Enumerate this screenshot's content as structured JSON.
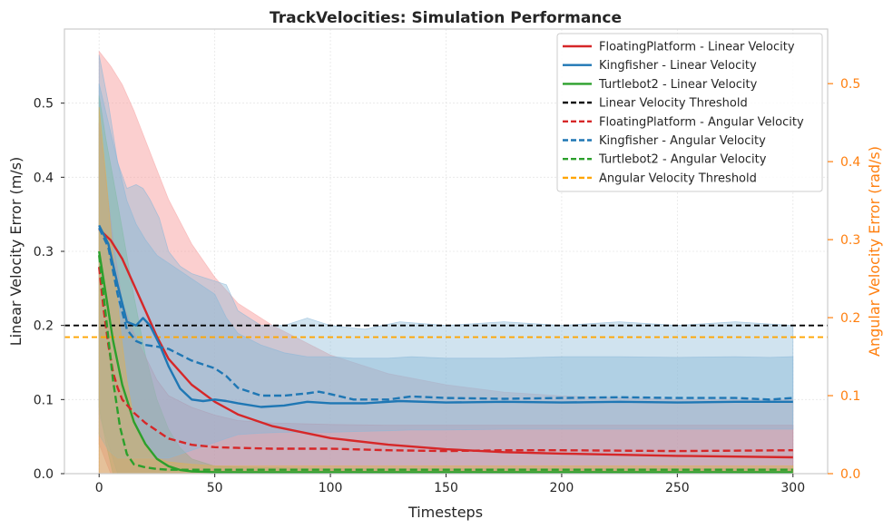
{
  "chart_data": {
    "type": "line",
    "title": "TrackVelocities: Simulation Performance",
    "xlabel": "Timesteps",
    "ylabel_left": "Linear Velocity Error (m/s)",
    "ylabel_right": "Angular Velocity Error (rad/s)",
    "xlim": [
      -15,
      315
    ],
    "ylim_left": [
      0,
      0.6
    ],
    "ylim_right": [
      0,
      0.57
    ],
    "x_ticks": [
      0,
      50,
      100,
      150,
      200,
      250,
      300
    ],
    "y_ticks_left": [
      0.0,
      0.1,
      0.2,
      0.3,
      0.4,
      0.5
    ],
    "y_ticks_right": [
      0.0,
      0.1,
      0.2,
      0.3,
      0.4,
      0.5
    ],
    "x_tick_labels": [
      "0",
      "50",
      "100",
      "150",
      "200",
      "250",
      "300"
    ],
    "y_tick_labels_left": [
      "0.0",
      "0.1",
      "0.2",
      "0.3",
      "0.4",
      "0.5"
    ],
    "y_tick_labels_right": [
      "0.0",
      "0.1",
      "0.2",
      "0.3",
      "0.4",
      "0.5"
    ],
    "legend_position": "top-right",
    "colors": {
      "floating": "#d62728",
      "kingfisher": "#1f77b4",
      "turtlebot": "#2ca02c",
      "threshold_linear": "#000000",
      "threshold_angular": "#ffa500",
      "right_axis": "#ff7f0e"
    },
    "thresholds": [
      {
        "name": "Linear Velocity Threshold",
        "axis": "left",
        "value": 0.2,
        "color": "#000000"
      },
      {
        "name": "Angular Velocity Threshold",
        "axis": "right",
        "value": 0.175,
        "color": "#ffa500"
      }
    ],
    "series": [
      {
        "name": "FloatingPlatform - Linear Velocity",
        "axis": "left",
        "style": "solid",
        "color": "#d62728",
        "x": [
          0,
          5,
          10,
          15,
          20,
          25,
          30,
          40,
          50,
          60,
          75,
          100,
          125,
          150,
          175,
          200,
          250,
          300
        ],
        "y": [
          0.33,
          0.315,
          0.29,
          0.255,
          0.22,
          0.185,
          0.155,
          0.12,
          0.097,
          0.08,
          0.064,
          0.048,
          0.039,
          0.033,
          0.029,
          0.027,
          0.024,
          0.022
        ],
        "lower": [
          0.04,
          0.0,
          0.0,
          0.0,
          0.0,
          0.0,
          0.0,
          0.0,
          0.0,
          0.0,
          0.0,
          0.0,
          0.0,
          0.0,
          0.0,
          0.0,
          0.0,
          0.0
        ],
        "upper": [
          0.57,
          0.55,
          0.525,
          0.49,
          0.45,
          0.41,
          0.37,
          0.31,
          0.265,
          0.23,
          0.2,
          0.16,
          0.135,
          0.12,
          0.11,
          0.105,
          0.1,
          0.1
        ],
        "band_color": "#f7a8a8",
        "band_opacity": 0.55
      },
      {
        "name": "Kingfisher - Linear Velocity",
        "axis": "left",
        "style": "solid",
        "color": "#1f77b4",
        "x": [
          0,
          4,
          8,
          12,
          16,
          19,
          22,
          26,
          30,
          35,
          40,
          45,
          50,
          55,
          60,
          70,
          80,
          90,
          100,
          115,
          130,
          150,
          175,
          200,
          225,
          250,
          275,
          300
        ],
        "y": [
          0.335,
          0.31,
          0.255,
          0.205,
          0.2,
          0.21,
          0.2,
          0.175,
          0.145,
          0.115,
          0.1,
          0.098,
          0.1,
          0.098,
          0.095,
          0.09,
          0.092,
          0.097,
          0.095,
          0.095,
          0.098,
          0.096,
          0.097,
          0.096,
          0.097,
          0.096,
          0.097,
          0.097
        ],
        "lower": [
          0.08,
          0.04,
          0.0,
          0.0,
          0.0,
          0.0,
          0.0,
          0.0,
          0.0,
          0.0,
          0.0,
          0.0,
          0.0,
          0.0,
          0.0,
          0.0,
          0.0,
          0.0,
          0.0,
          0.0,
          0.0,
          0.0,
          0.0,
          0.0,
          0.0,
          0.0,
          0.0,
          0.0
        ],
        "upper": [
          0.565,
          0.5,
          0.42,
          0.385,
          0.39,
          0.385,
          0.37,
          0.345,
          0.3,
          0.28,
          0.27,
          0.265,
          0.26,
          0.255,
          0.22,
          0.2,
          0.2,
          0.21,
          0.2,
          0.195,
          0.205,
          0.2,
          0.205,
          0.2,
          0.205,
          0.2,
          0.205,
          0.2
        ],
        "band_color": "#8ab8d8",
        "band_opacity": 0.4
      },
      {
        "name": "Turtlebot2 - Linear Velocity",
        "axis": "left",
        "style": "solid",
        "color": "#2ca02c",
        "x": [
          0,
          3,
          6,
          10,
          15,
          20,
          25,
          30,
          35,
          40,
          50,
          75,
          100,
          150,
          200,
          250,
          300
        ],
        "y": [
          0.3,
          0.24,
          0.18,
          0.12,
          0.07,
          0.04,
          0.02,
          0.01,
          0.005,
          0.003,
          0.002,
          0.002,
          0.002,
          0.002,
          0.002,
          0.002,
          0.002
        ],
        "lower": [
          0.09,
          0.04,
          0.0,
          0.0,
          0.0,
          0.0,
          0.0,
          0.0,
          0.0,
          0.0,
          0.0,
          0.0,
          0.0,
          0.0,
          0.0,
          0.0,
          0.0
        ],
        "upper": [
          0.51,
          0.45,
          0.4,
          0.33,
          0.24,
          0.16,
          0.1,
          0.06,
          0.035,
          0.02,
          0.01,
          0.008,
          0.007,
          0.007,
          0.007,
          0.007,
          0.007
        ],
        "band_color": "#7fbf7f",
        "band_opacity": 0.5
      },
      {
        "name": "FloatingPlatform - Angular Velocity",
        "axis": "right",
        "style": "dashed",
        "color": "#d62728",
        "x": [
          0,
          2,
          4,
          6,
          8,
          10,
          15,
          20,
          25,
          30,
          40,
          50,
          60,
          75,
          100,
          125,
          150,
          175,
          200,
          250,
          300
        ],
        "y": [
          0.265,
          0.21,
          0.165,
          0.13,
          0.11,
          0.095,
          0.078,
          0.065,
          0.055,
          0.045,
          0.037,
          0.034,
          0.033,
          0.032,
          0.032,
          0.03,
          0.029,
          0.03,
          0.03,
          0.029,
          0.03
        ],
        "lower": [
          0.0,
          0.0,
          0.0,
          0.0,
          0.0,
          0.0,
          0.0,
          0.0,
          0.0,
          0.0,
          0.0,
          0.0,
          0.0,
          0.0,
          0.0,
          0.0,
          0.0,
          0.0,
          0.0,
          0.0,
          0.0
        ],
        "upper": [
          0.45,
          0.4,
          0.35,
          0.3,
          0.26,
          0.22,
          0.18,
          0.15,
          0.12,
          0.1,
          0.085,
          0.075,
          0.068,
          0.065,
          0.063,
          0.062,
          0.062,
          0.062,
          0.062,
          0.062,
          0.062
        ],
        "band_color": "#c98a9a",
        "band_opacity": 0.4
      },
      {
        "name": "Kingfisher - Angular Velocity",
        "axis": "right",
        "style": "dashed",
        "color": "#1f77b4",
        "x": [
          0,
          4,
          8,
          12,
          16,
          20,
          25,
          30,
          40,
          50,
          55,
          60,
          70,
          80,
          90,
          95,
          100,
          110,
          125,
          135,
          150,
          175,
          200,
          225,
          250,
          275,
          290,
          300
        ],
        "y": [
          0.315,
          0.29,
          0.23,
          0.185,
          0.17,
          0.165,
          0.163,
          0.16,
          0.145,
          0.135,
          0.125,
          0.11,
          0.1,
          0.1,
          0.103,
          0.105,
          0.102,
          0.095,
          0.095,
          0.099,
          0.097,
          0.096,
          0.097,
          0.098,
          0.097,
          0.097,
          0.095,
          0.097
        ],
        "lower": [
          0.05,
          0.03,
          0.02,
          0.02,
          0.02,
          0.02,
          0.02,
          0.02,
          0.03,
          0.04,
          0.045,
          0.05,
          0.052,
          0.053,
          0.053,
          0.053,
          0.053,
          0.054,
          0.055,
          0.056,
          0.056,
          0.057,
          0.057,
          0.057,
          0.057,
          0.057,
          0.057,
          0.057
        ],
        "upper": [
          0.5,
          0.45,
          0.4,
          0.35,
          0.32,
          0.3,
          0.28,
          0.27,
          0.25,
          0.23,
          0.2,
          0.18,
          0.165,
          0.155,
          0.15,
          0.15,
          0.15,
          0.148,
          0.148,
          0.15,
          0.148,
          0.148,
          0.15,
          0.15,
          0.149,
          0.15,
          0.149,
          0.15
        ],
        "band_color": "#8ab8d8",
        "band_opacity": 0.45
      },
      {
        "name": "Turtlebot2 - Angular Velocity",
        "axis": "right",
        "style": "dashed",
        "color": "#2ca02c",
        "x": [
          0,
          3,
          6,
          9,
          12,
          15,
          20,
          25,
          30,
          40,
          50,
          75,
          100,
          150,
          200,
          250,
          300
        ],
        "y": [
          0.28,
          0.2,
          0.12,
          0.06,
          0.025,
          0.012,
          0.008,
          0.006,
          0.005,
          0.005,
          0.005,
          0.005,
          0.005,
          0.005,
          0.005,
          0.005,
          0.005
        ],
        "lower": [
          0.0,
          0.0,
          0.0,
          0.0,
          0.0,
          0.0,
          0.0,
          0.0,
          0.0,
          0.0,
          0.0,
          0.0,
          0.0,
          0.0,
          0.0,
          0.0,
          0.0
        ],
        "upper": [
          0.47,
          0.38,
          0.28,
          0.19,
          0.12,
          0.07,
          0.035,
          0.02,
          0.015,
          0.012,
          0.01,
          0.01,
          0.01,
          0.01,
          0.01,
          0.01,
          0.01
        ],
        "band_color": "#e0b050",
        "band_opacity": 0.45
      }
    ],
    "legend": [
      {
        "label": "FloatingPlatform - Linear Velocity",
        "color": "#d62728",
        "style": "solid"
      },
      {
        "label": "Kingfisher - Linear Velocity",
        "color": "#1f77b4",
        "style": "solid"
      },
      {
        "label": "Turtlebot2 - Linear Velocity",
        "color": "#2ca02c",
        "style": "solid"
      },
      {
        "label": "Linear Velocity Threshold",
        "color": "#000000",
        "style": "dashed"
      },
      {
        "label": "FloatingPlatform - Angular Velocity",
        "color": "#d62728",
        "style": "dashed"
      },
      {
        "label": "Kingfisher - Angular Velocity",
        "color": "#1f77b4",
        "style": "dashed"
      },
      {
        "label": "Turtlebot2 - Angular Velocity",
        "color": "#2ca02c",
        "style": "dashed"
      },
      {
        "label": "Angular Velocity Threshold",
        "color": "#ffa500",
        "style": "dashed"
      }
    ]
  }
}
